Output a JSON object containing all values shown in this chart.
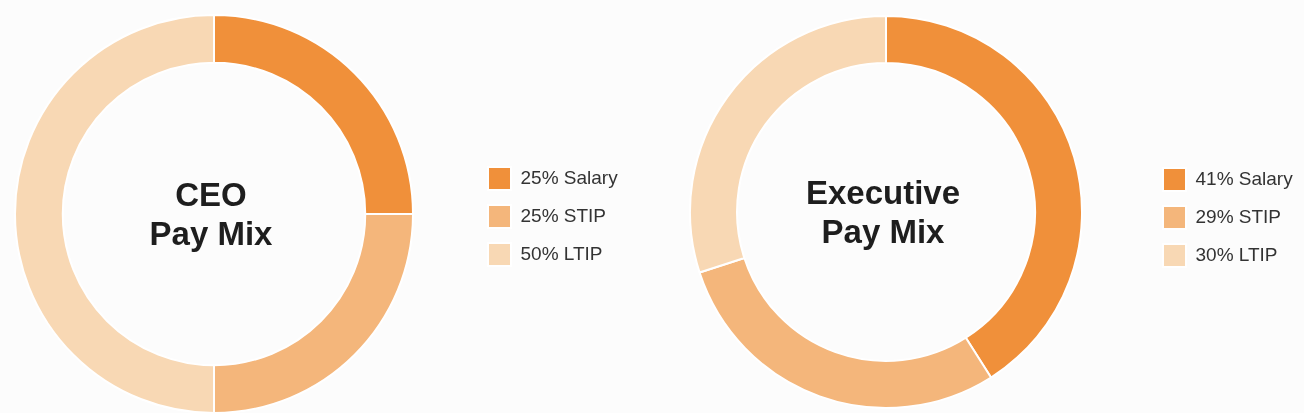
{
  "chart_data": [
    {
      "type": "donut",
      "title": "CEO\nPay Mix",
      "categories": [
        "25% Salary",
        "25% STIP",
        "50% LTIP"
      ],
      "values": [
        25,
        25,
        50
      ],
      "colors": [
        "#f0903a",
        "#f4b67b",
        "#f8d8b4"
      ],
      "legend": "right"
    },
    {
      "type": "donut",
      "title": "Executive\nPay Mix",
      "categories": [
        "41% Salary",
        "29% STIP",
        "30% LTIP"
      ],
      "values": [
        41,
        29,
        30
      ],
      "colors": [
        "#f0903a",
        "#f4b67b",
        "#f8d8b4"
      ],
      "legend": "right"
    }
  ]
}
